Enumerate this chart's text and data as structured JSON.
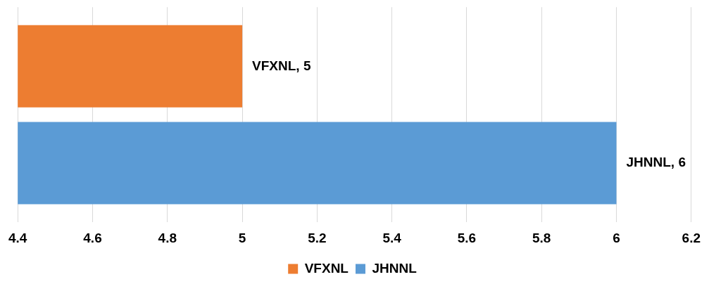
{
  "chart_data": {
    "type": "bar",
    "orientation": "horizontal",
    "categories": [
      null
    ],
    "series": [
      {
        "name": "VFXNL",
        "color": "#ed7d31",
        "values": [
          5
        ],
        "value_labels": [
          "VFXNL, 5"
        ]
      },
      {
        "name": "JHNNL",
        "color": "#5b9bd5",
        "values": [
          6
        ],
        "value_labels": [
          "JHNNL, 6"
        ]
      }
    ],
    "xlim": [
      4.4,
      6.2
    ],
    "xticks": [
      4.4,
      4.6,
      4.8,
      5,
      5.2,
      5.4,
      5.6,
      5.8,
      6,
      6.2
    ],
    "grid": "x",
    "legend": "bottom"
  }
}
